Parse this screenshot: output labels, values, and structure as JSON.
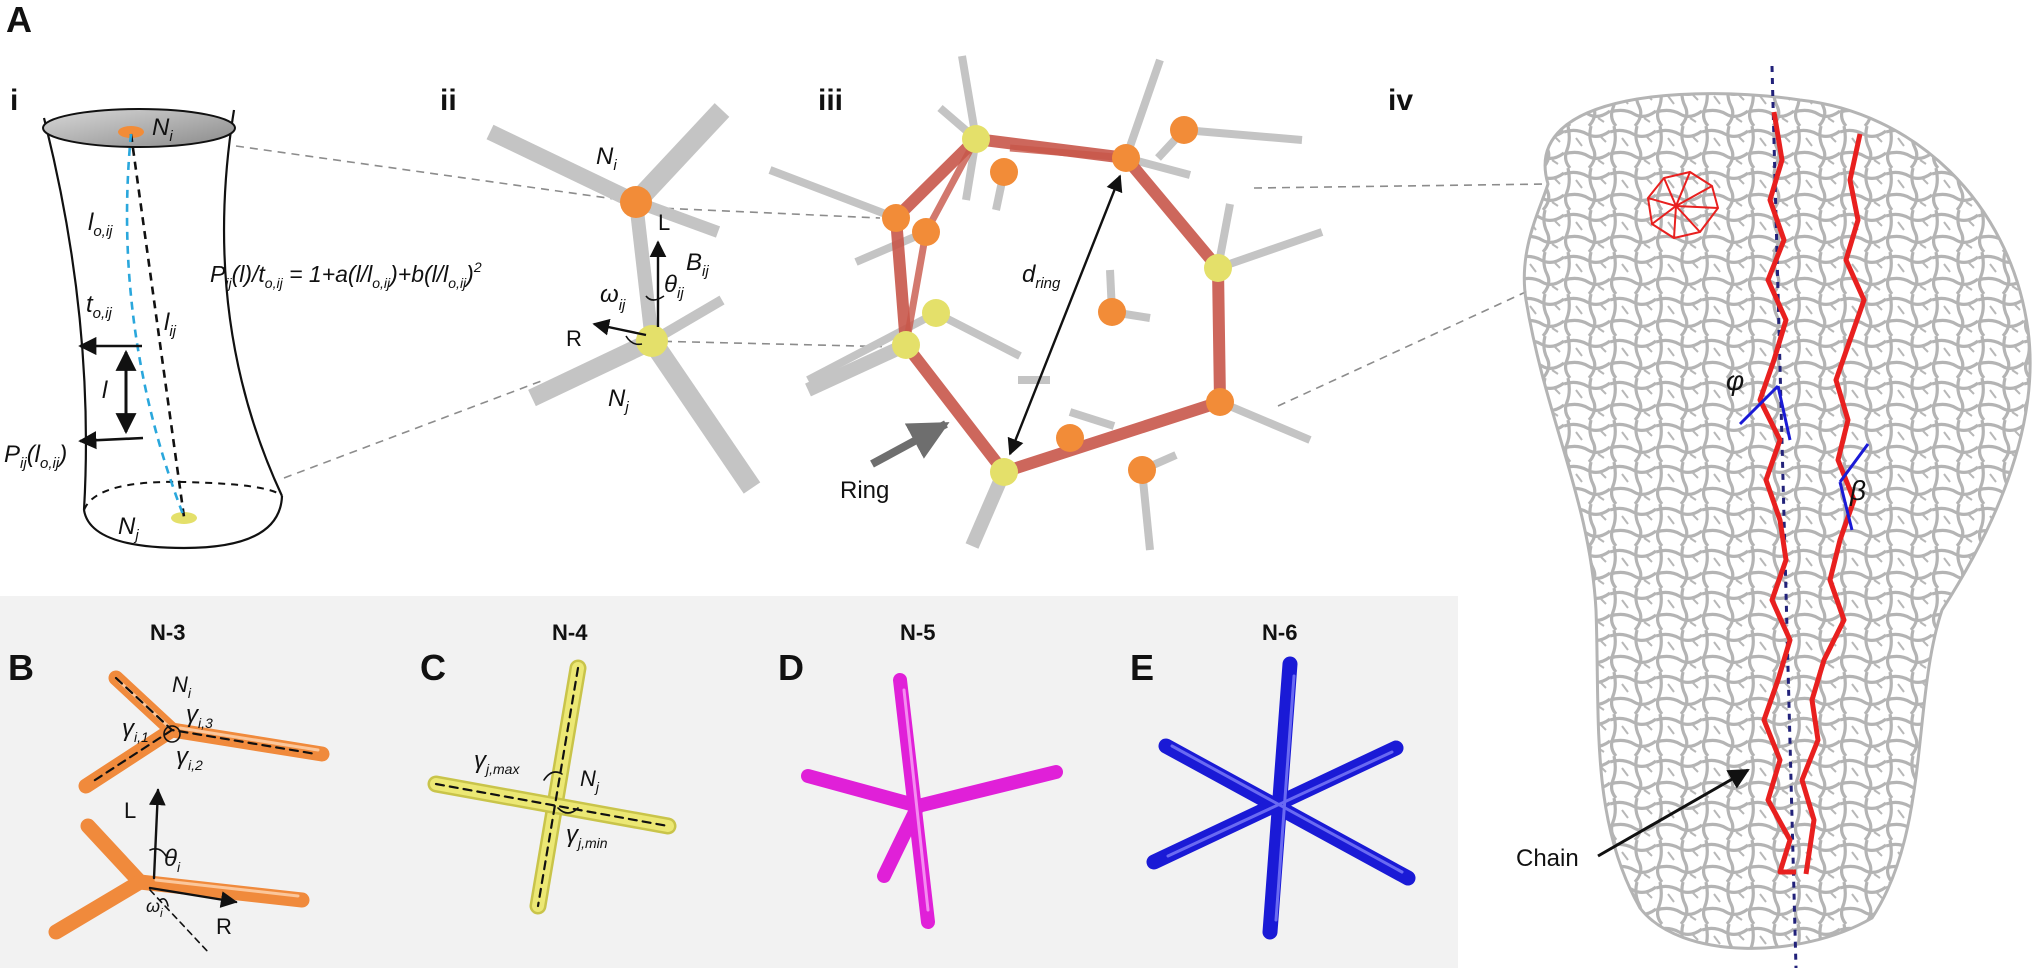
{
  "panels": {
    "A": "A",
    "B": "B",
    "C": "C",
    "D": "D",
    "E": "E",
    "i": "i",
    "ii": "ii",
    "iii": "iii",
    "iv": "iv"
  },
  "panel_i": {
    "node_top": "N",
    "node_top_sub": "i",
    "node_bottom": "N",
    "node_bottom_sub": "j",
    "l0": "l",
    "l0_sub": "o,ij",
    "lij": "l",
    "lij_sub": "ij",
    "t0": "t",
    "t0_sub": "o,ij",
    "l": "l",
    "P": "P",
    "P_sub": "ij",
    "P_arg": "(l",
    "P_arg_sub": "o,ij",
    "P_close": ")",
    "equation": "P_ij(l)/t_o,ij = 1+a(l/l_o,ij)+b(l/l_o,ij)^2"
  },
  "panel_ii": {
    "Ni": "N",
    "Ni_sub": "i",
    "Nj": "N",
    "Nj_sub": "j",
    "L": "L",
    "R": "R",
    "B": "B",
    "B_sub": "ij",
    "theta": "θ",
    "theta_sub": "ij",
    "omega": "ω",
    "omega_sub": "ij"
  },
  "panel_iii": {
    "d": "d",
    "d_sub": "ring",
    "ring_label": "Ring"
  },
  "panel_iv": {
    "phi": "φ",
    "beta": "β",
    "chain_label": "Chain"
  },
  "nodes": {
    "n3": {
      "title": "N-3",
      "Ni": "N",
      "Ni_sub": "i",
      "g1": "γ",
      "g1_sub": "i,1",
      "g2": "γ",
      "g2_sub": "i,2",
      "g3": "γ",
      "g3_sub": "i,3",
      "L": "L",
      "R": "R",
      "theta": "θ",
      "theta_sub": "i",
      "omega": "ω",
      "omega_sub": "i"
    },
    "n4": {
      "title": "N-4",
      "Nj": "N",
      "Nj_sub": "j",
      "gmax": "γ",
      "gmax_sub": "j,max",
      "gmin": "γ",
      "gmin_sub": "j,min"
    },
    "n5": {
      "title": "N-5"
    },
    "n6": {
      "title": "N-6"
    }
  },
  "colors": {
    "node_orange": "#f28c38",
    "node_yellow": "#e4e06a",
    "ring": "#c8574a",
    "n3": "#f08a3c",
    "n4": "#ece874",
    "n5": "#e020d8",
    "n6": "#1a1ad6",
    "chain": "#e8201f",
    "angle": "#1a1ad6",
    "axis": "#22227a",
    "rod_gray": "#bdbdbd",
    "bottom_bg": "#f2f2f2"
  }
}
